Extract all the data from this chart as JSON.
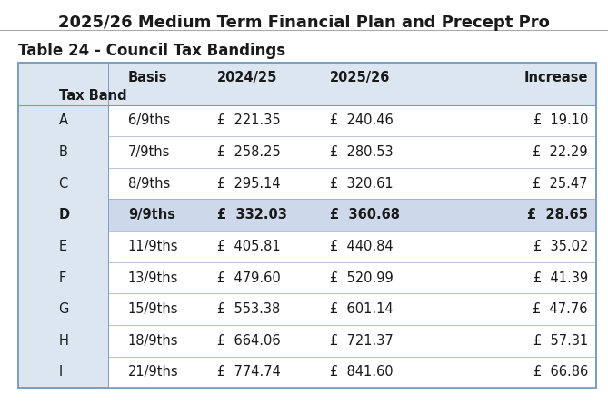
{
  "title": "2025/26 Medium Term Financial Plan and Precept Pro",
  "subtitle": "Table 24 - Council Tax Bandings",
  "col_headers": [
    "Tax Band",
    "Basis",
    "2024/25",
    "2025/26",
    "Increase"
  ],
  "rows": [
    [
      "A",
      "6/9ths",
      "£  221.35",
      "£  240.46",
      "£  19.10"
    ],
    [
      "B",
      "7/9ths",
      "£  258.25",
      "£  280.53",
      "£  22.29"
    ],
    [
      "C",
      "8/9ths",
      "£  295.14",
      "£  320.61",
      "£  25.47"
    ],
    [
      "D",
      "9/9ths",
      "£  332.03",
      "£  360.68",
      "£  28.65"
    ],
    [
      "E",
      "11/9ths",
      "£  405.81",
      "£  440.84",
      "£  35.02"
    ],
    [
      "F",
      "13/9ths",
      "£  479.60",
      "£  520.99",
      "£  41.39"
    ],
    [
      "G",
      "15/9ths",
      "£  553.38",
      "£  601.14",
      "£  47.76"
    ],
    [
      "H",
      "18/9ths",
      "£  664.06",
      "£  721.37",
      "£  57.31"
    ],
    [
      "I",
      "21/9ths",
      "£  774.74",
      "£  841.60",
      "£  66.86"
    ]
  ],
  "bold_row_index": 3,
  "bg_color": "#ffffff",
  "table_bg": "#dce6f1",
  "bold_row_right_bg": "#cdd9ea",
  "title_fontsize": 13,
  "subtitle_fontsize": 12,
  "cell_fontsize": 10.5,
  "header_fontsize": 10.5,
  "title_color": "#1a1a1a",
  "subtitle_color": "#1a1a1a",
  "text_color": "#1a1a1a",
  "border_color": "#7a9cc4",
  "title_line_color": "#aaaaaa"
}
